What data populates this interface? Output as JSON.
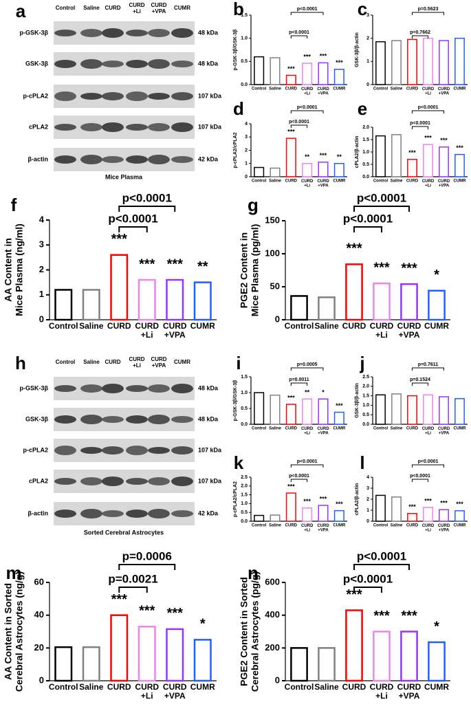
{
  "blots": [
    {
      "panel": "a",
      "lanes": [
        "Control",
        "Saline",
        "CURD",
        "CURD\n+Li",
        "CURD\n+VPA",
        "CUMR"
      ],
      "rows": [
        {
          "label": "p-GSK-3β",
          "size": "48 kDa"
        },
        {
          "label": "GSK-3β",
          "size": "48 kDa"
        },
        {
          "label": "p-cPLA2",
          "size": "107 kDa"
        },
        {
          "label": "cPLA2",
          "size": "107 kDa"
        },
        {
          "label": "β-actin",
          "size": "42 kDa"
        }
      ],
      "caption": "Mice Plasma"
    },
    {
      "panel": "h",
      "lanes": [
        "Control",
        "Saline",
        "CURD",
        "CURD\n+Li",
        "CURD\n+VPA",
        "CUMR"
      ],
      "rows": [
        {
          "label": "p-GSK-3β",
          "size": "48 kDa"
        },
        {
          "label": "GSK-3β",
          "size": "48 kDa"
        },
        {
          "label": "p-cPLA2",
          "size": "107 kDa"
        },
        {
          "label": "cPLA2",
          "size": "107 kDa"
        },
        {
          "label": "β-actin",
          "size": "42 kDa"
        }
      ],
      "caption": "Sorted Cerebral Astrocytes"
    }
  ],
  "chart_data": [
    {
      "type": "bar",
      "panel": "b",
      "y_label": "p-GSK-3β/GSK-3β",
      "categories": [
        "Control",
        "Saline",
        "CURD",
        "CURD\n+Li",
        "CURD\n+VPA",
        "CUMR"
      ],
      "values": [
        0.6,
        0.58,
        0.2,
        0.46,
        0.47,
        0.33
      ],
      "colors": [
        "#000000",
        "#808080",
        "#ff0000",
        "#ee82ee",
        "#9933ff",
        "#1f5fff"
      ],
      "ylim": [
        0,
        1.5
      ],
      "yticks": [
        {
          "value": 0,
          "label": "0.0"
        },
        0.5,
        {
          "value": 1,
          "label": "1.0"
        },
        1.5
      ],
      "stars": [
        null,
        null,
        "***",
        "***",
        "***",
        "***"
      ],
      "brackets": [
        "p<0.0001",
        "p<0.0001"
      ]
    },
    {
      "type": "bar",
      "panel": "c",
      "y_label": "GSK-3β/β-actin",
      "categories": [
        "Control",
        "Saline",
        "CURD",
        "CURD\n+Li",
        "CURD\n+VPA",
        "CUMR"
      ],
      "values": [
        1.85,
        1.9,
        1.95,
        2.0,
        1.9,
        2.0
      ],
      "colors": [
        "#000000",
        "#808080",
        "#ff0000",
        "#ee82ee",
        "#9933ff",
        "#1f5fff"
      ],
      "ylim": [
        0,
        3
      ],
      "yticks": [
        0,
        1,
        2,
        3
      ],
      "brackets": [
        "p=0.7662",
        "p=0.5623"
      ]
    },
    {
      "type": "bar",
      "panel": "d",
      "y_label": "p-cPLA2/cPLA2",
      "categories": [
        "Control",
        "Saline",
        "CURD",
        "CURD\n+Li",
        "CURD\n+VPA",
        "CUMR"
      ],
      "values": [
        0.7,
        0.65,
        2.9,
        1.0,
        1.1,
        1.0
      ],
      "colors": [
        "#000000",
        "#808080",
        "#ff0000",
        "#ee82ee",
        "#9933ff",
        "#1f5fff"
      ],
      "ylim": [
        0,
        4
      ],
      "yticks": [
        0,
        1,
        2,
        3,
        4
      ],
      "stars": [
        null,
        null,
        "***",
        "**",
        "***",
        "**"
      ],
      "brackets": [
        "p<0.0001",
        "p<0.0001"
      ]
    },
    {
      "type": "bar",
      "panel": "e",
      "y_label": "cPLA2/β-actin",
      "categories": [
        "Control",
        "Saline",
        "CURD",
        "CURD\n+Li",
        "CURD\n+VPA",
        "CUMR"
      ],
      "values": [
        1.65,
        1.7,
        0.7,
        1.3,
        1.2,
        0.9
      ],
      "colors": [
        "#000000",
        "#808080",
        "#ff0000",
        "#ee82ee",
        "#9933ff",
        "#1f5fff"
      ],
      "ylim": [
        0,
        2
      ],
      "yticks": [
        {
          "value": 0,
          "label": "0.0"
        },
        0.5,
        {
          "value": 1,
          "label": "1.0"
        },
        1.5,
        {
          "value": 2,
          "label": "2.0"
        }
      ],
      "stars": [
        null,
        null,
        "***",
        "***",
        "***",
        "***"
      ],
      "brackets": [
        "p<0.0001",
        "p<0.0001"
      ]
    },
    {
      "type": "bar",
      "panel": "f",
      "y_label": "AA Content in\nMice Plasma (ng/ml)",
      "categories": [
        "Control",
        "Saline",
        "CURD",
        "CURD\n+Li",
        "CURD\n+VPA",
        "CUMR"
      ],
      "values": [
        1.2,
        1.2,
        2.6,
        1.6,
        1.6,
        1.5
      ],
      "colors": [
        "#000000",
        "#808080",
        "#ff0000",
        "#ee82ee",
        "#9933ff",
        "#1f5fff"
      ],
      "ylim": [
        0,
        4
      ],
      "yticks": [
        0,
        1,
        2,
        3,
        4
      ],
      "stars": [
        null,
        null,
        "***",
        "***",
        "***",
        "**"
      ],
      "brackets": [
        "p<0.0001",
        "p<0.0001"
      ]
    },
    {
      "type": "bar",
      "panel": "g",
      "y_label": "PGE2 Content in\nMice Plasma (pg/ml)",
      "categories": [
        "Control",
        "Saline",
        "CURD",
        "CURD\n+Li",
        "CURD\n+VPA",
        "CUMR"
      ],
      "values": [
        36,
        34,
        84,
        55,
        54,
        44
      ],
      "colors": [
        "#000000",
        "#808080",
        "#ff0000",
        "#ee82ee",
        "#9933ff",
        "#1f5fff"
      ],
      "ylim": [
        0,
        150
      ],
      "yticks": [
        0,
        50,
        100,
        150
      ],
      "stars": [
        null,
        null,
        "***",
        "***",
        "***",
        "*"
      ],
      "brackets": [
        "p<0.0001",
        "p<0.0001"
      ]
    },
    {
      "type": "bar",
      "panel": "i",
      "y_label": "p-GSK-3β/GSK-3β",
      "categories": [
        "Control",
        "Saline",
        "CURD",
        "CURD\n+Li",
        "CURD\n+VPA",
        "CUMR"
      ],
      "values": [
        1.0,
        0.92,
        0.63,
        0.8,
        0.8,
        0.38
      ],
      "colors": [
        "#000000",
        "#808080",
        "#ff0000",
        "#ee82ee",
        "#9933ff",
        "#1f5fff"
      ],
      "ylim": [
        0,
        1.5
      ],
      "yticks": [
        {
          "value": 0,
          "label": "0.0"
        },
        0.5,
        {
          "value": 1,
          "label": "1.0"
        },
        1.5
      ],
      "stars": [
        null,
        null,
        "***",
        "**",
        "*",
        "***"
      ],
      "brackets": [
        "p=0.0011",
        "p=0.0005"
      ]
    },
    {
      "type": "bar",
      "panel": "j",
      "y_label": "GSK-3β/β-actin",
      "categories": [
        "Control",
        "Saline",
        "CURD",
        "CURD\n+Li",
        "CURD\n+VPA",
        "CUMR"
      ],
      "values": [
        1.55,
        1.6,
        1.5,
        1.55,
        1.45,
        1.35
      ],
      "colors": [
        "#000000",
        "#808080",
        "#ff0000",
        "#ee82ee",
        "#9933ff",
        "#1f5fff"
      ],
      "ylim": [
        0,
        2.5
      ],
      "yticks": [
        {
          "value": 0,
          "label": "0.0"
        },
        0.5,
        {
          "value": 1,
          "label": "1.0"
        },
        1.5,
        {
          "value": 2,
          "label": "2.0"
        },
        2.5
      ],
      "brackets": [
        "p=0.1524",
        "p=0.7611"
      ]
    },
    {
      "type": "bar",
      "panel": "k",
      "y_label": "p-cPLA2/cPLA2",
      "categories": [
        "Control",
        "Saline",
        "CURD",
        "CURD\n+Li",
        "CURD\n+VPA",
        "CUMR"
      ],
      "values": [
        0.33,
        0.35,
        1.6,
        0.75,
        0.9,
        0.6
      ],
      "colors": [
        "#000000",
        "#808080",
        "#ff0000",
        "#ee82ee",
        "#9933ff",
        "#1f5fff"
      ],
      "ylim": [
        0,
        2.5
      ],
      "yticks": [
        {
          "value": 0,
          "label": "0.0"
        },
        0.5,
        {
          "value": 1,
          "label": "1.0"
        },
        1.5,
        {
          "value": 2,
          "label": "2.0"
        },
        2.5
      ],
      "stars": [
        null,
        null,
        "***",
        "***",
        "***",
        "***"
      ],
      "brackets": [
        "p<0.0001",
        "p<0.0001"
      ]
    },
    {
      "type": "bar",
      "panel": "l",
      "y_label": "cPLA2/β-actin",
      "categories": [
        "Control",
        "Saline",
        "CURD",
        "CURD\n+Li",
        "CURD\n+VPA",
        "CUMR"
      ],
      "values": [
        2.35,
        2.2,
        0.7,
        1.25,
        1.05,
        0.95
      ],
      "colors": [
        "#000000",
        "#808080",
        "#ff0000",
        "#ee82ee",
        "#9933ff",
        "#1f5fff"
      ],
      "ylim": [
        0,
        4
      ],
      "yticks": [
        0,
        1,
        2,
        3,
        4
      ],
      "stars": [
        null,
        null,
        "***",
        "***",
        "***",
        "***"
      ],
      "brackets": [
        "p<0.0001",
        "p<0.0001"
      ]
    },
    {
      "type": "bar",
      "panel": "m",
      "y_label": "AA Content in Sorted\nCerebral Astrocytes (ng/g)",
      "categories": [
        "Control",
        "Saline",
        "CURD",
        "CURD\n+Li",
        "CURD\n+VPA",
        "CUMR"
      ],
      "values": [
        20.5,
        20.5,
        40,
        33,
        31.5,
        25
      ],
      "colors": [
        "#000000",
        "#808080",
        "#ff0000",
        "#ee82ee",
        "#9933ff",
        "#1f5fff"
      ],
      "ylim": [
        0,
        60
      ],
      "yticks": [
        0,
        20,
        40,
        60
      ],
      "stars": [
        null,
        null,
        "***",
        "***",
        "***",
        "*"
      ],
      "brackets": [
        "p=0.0021",
        "p=0.0006"
      ]
    },
    {
      "type": "bar",
      "panel": "n",
      "y_label": "PGE2 Content in Sorted\nCerebral Astrocytes (pg/g)",
      "categories": [
        "Control",
        "Saline",
        "CURD",
        "CURD\n+Li",
        "CURD\n+VPA",
        "CUMR"
      ],
      "values": [
        200,
        200,
        430,
        300,
        300,
        235
      ],
      "colors": [
        "#000000",
        "#808080",
        "#ff0000",
        "#ee82ee",
        "#9933ff",
        "#1f5fff"
      ],
      "ylim": [
        0,
        600
      ],
      "yticks": [
        0,
        200,
        400,
        600
      ],
      "stars": [
        null,
        null,
        "***",
        "***",
        "***",
        "*"
      ],
      "brackets": [
        "p<0.0001",
        "p<0.0001"
      ]
    }
  ]
}
